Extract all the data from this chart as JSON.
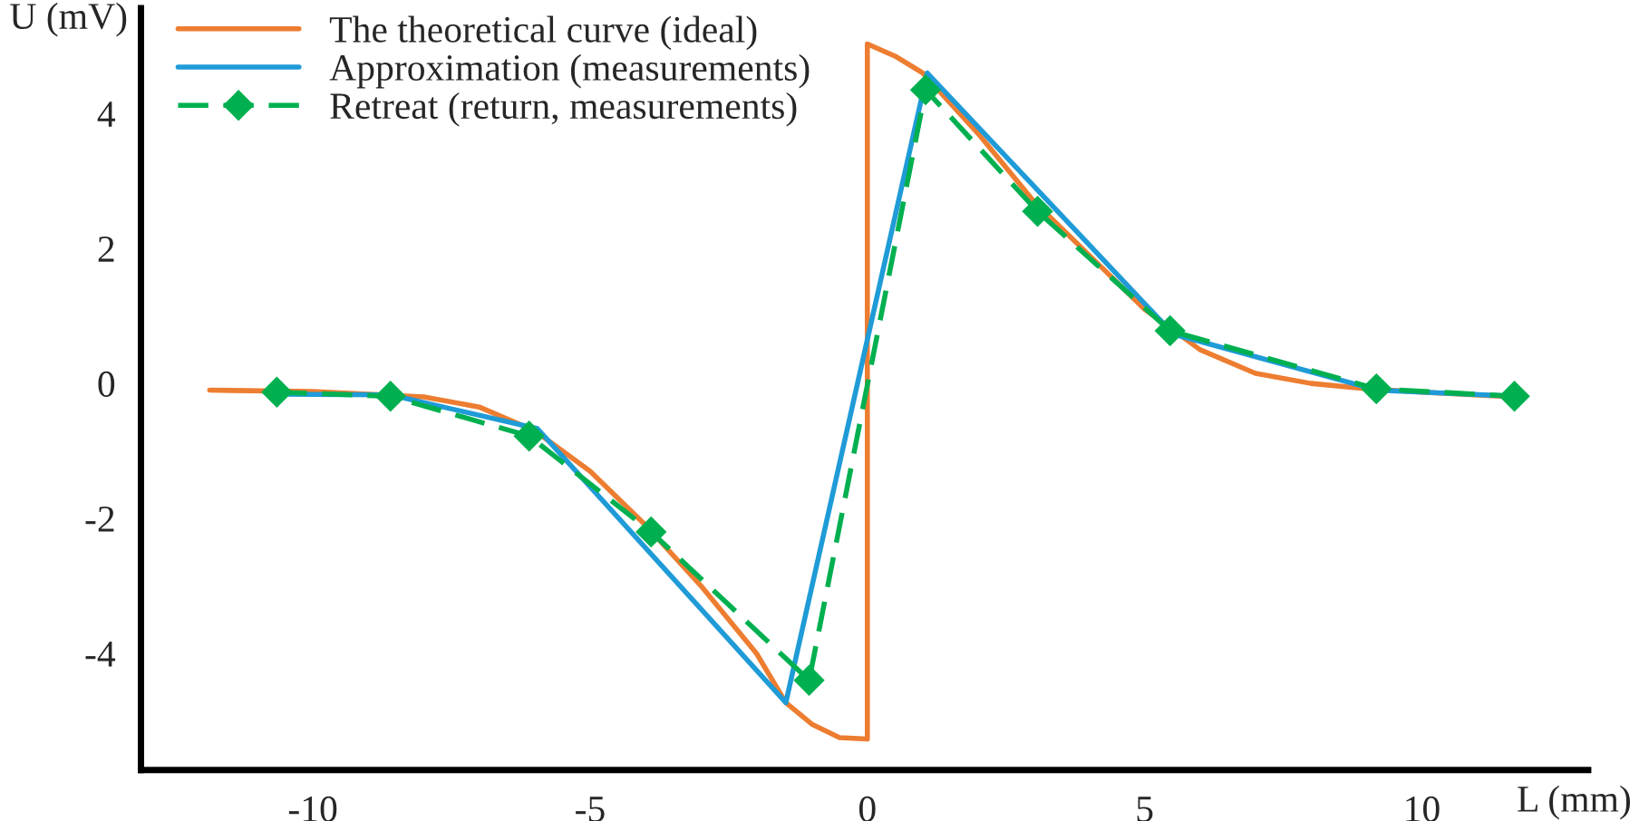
{
  "chart_data": {
    "type": "line",
    "xlabel": "L (mm)",
    "ylabel": "U (mV)",
    "xlim": [
      -13.1,
      13.0
    ],
    "ylim": [
      -5.73,
      5.56
    ],
    "xticks": [
      -10,
      -5,
      0,
      5,
      10
    ],
    "yticks": [
      -4,
      -2,
      0,
      2,
      4
    ],
    "grid": false,
    "legend": "top left",
    "series": [
      {
        "name": "The theoretical curve (ideal)",
        "color": "#ed7d31",
        "marker": "none",
        "line_style": "solid",
        "x": [
          -11.86,
          -10,
          -8,
          -7,
          -6,
          -5,
          -4,
          -3,
          -2,
          -1.47,
          -1,
          -0.5,
          0,
          0,
          0.5,
          1,
          2,
          3,
          4,
          5,
          6,
          7,
          8,
          9,
          10,
          11.67
        ],
        "values": [
          -0.1,
          -0.12,
          -0.2,
          -0.35,
          -0.7,
          -1.3,
          -2.1,
          -3.0,
          -4.0,
          -4.73,
          -5.05,
          -5.25,
          -5.27,
          5.03,
          4.85,
          4.6,
          3.7,
          2.7,
          1.9,
          1.1,
          0.5,
          0.15,
          0.0,
          -0.08,
          -0.13,
          -0.2
        ]
      },
      {
        "name": "Approximation (measurements)",
        "color": "#1f9bd7",
        "marker": "none",
        "line_style": "solid",
        "x": [
          -10.7,
          -8.6,
          -5.95,
          -1.47,
          1.08,
          5.52,
          9.2,
          11.67
        ],
        "values": [
          -0.16,
          -0.17,
          -0.67,
          -4.73,
          4.6,
          0.73,
          -0.1,
          -0.19
        ]
      },
      {
        "name": "Retreat (return, measurements)",
        "color": "#00b050",
        "marker": "diamond",
        "line_style": "dashed",
        "x": [
          -10.65,
          -8.6,
          -6.1,
          -3.9,
          -1.05,
          1.05,
          3.07,
          5.46,
          9.18,
          11.67
        ],
        "values": [
          -0.13,
          -0.19,
          -0.78,
          -2.2,
          -4.4,
          4.35,
          2.55,
          0.78,
          -0.08,
          -0.19
        ]
      }
    ]
  }
}
